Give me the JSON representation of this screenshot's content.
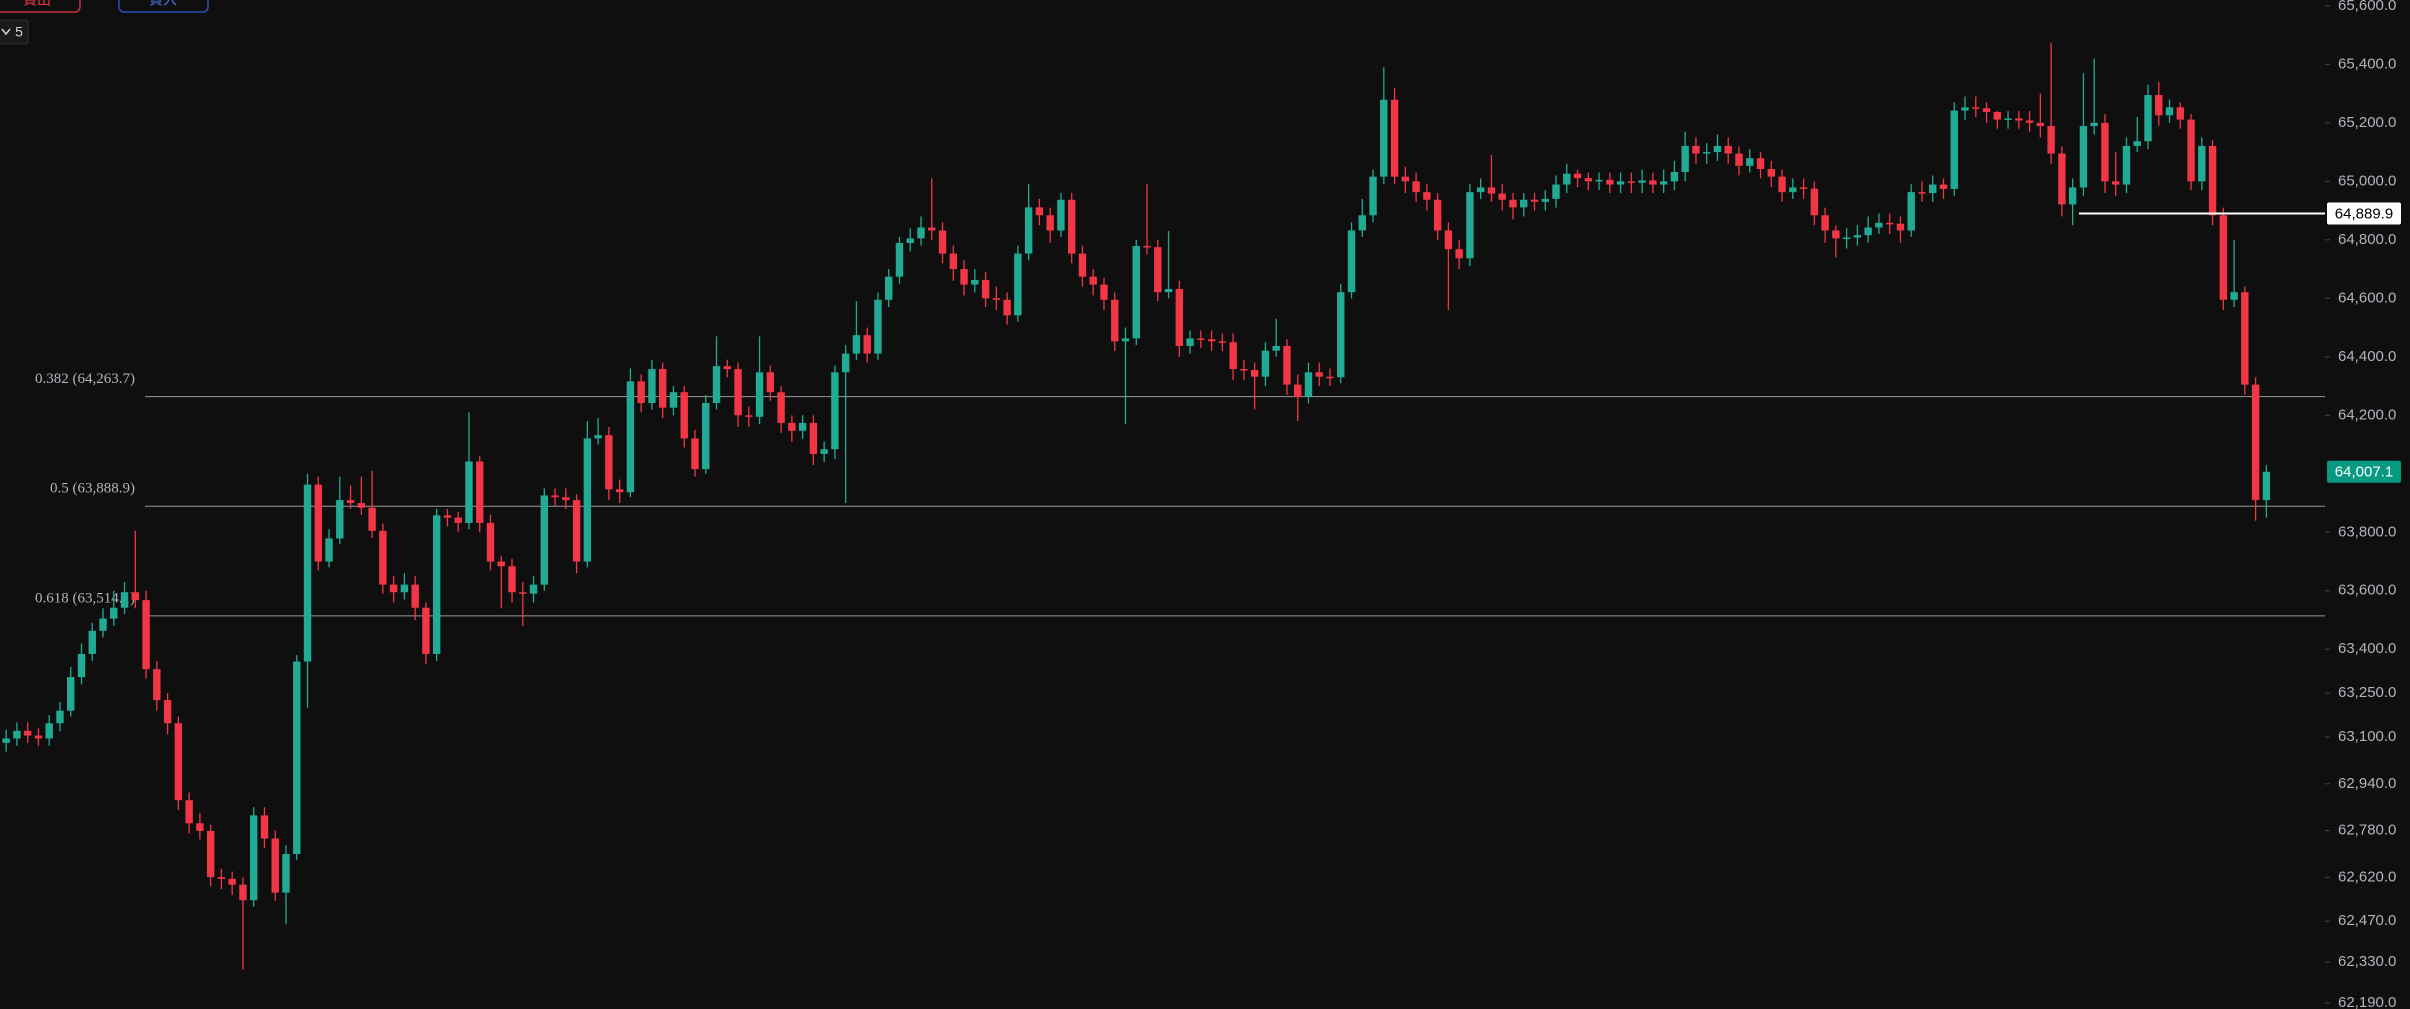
{
  "toolbar": {
    "sell": "賣出",
    "buy": "買入",
    "interval": "5"
  },
  "chart_data": {
    "type": "candlestick",
    "up_color": "#22ab94",
    "down_color": "#f23645",
    "ylim": [
      62170,
      65620
    ],
    "yticks": [
      {
        "value": 65600,
        "label": "65,600.0"
      },
      {
        "value": 65400,
        "label": "65,400.0"
      },
      {
        "value": 65200,
        "label": "65,200.0"
      },
      {
        "value": 65000,
        "label": "65,000.0"
      },
      {
        "value": 64800,
        "label": "64,800.0"
      },
      {
        "value": 64600,
        "label": "64,600.0"
      },
      {
        "value": 64400,
        "label": "64,400.0"
      },
      {
        "value": 64200,
        "label": "64,200.0"
      },
      {
        "value": 63800,
        "label": "63,800.0"
      },
      {
        "value": 63600,
        "label": "63,600.0"
      },
      {
        "value": 63400,
        "label": "63,400.0"
      },
      {
        "value": 63250,
        "label": "63,250.0"
      },
      {
        "value": 63100,
        "label": "63,100.0"
      },
      {
        "value": 62940,
        "label": "62,940.0"
      },
      {
        "value": 62780,
        "label": "62,780.0"
      },
      {
        "value": 62620,
        "label": "62,620.0"
      },
      {
        "value": 62470,
        "label": "62,470.0"
      },
      {
        "value": 62330,
        "label": "62,330.0"
      },
      {
        "value": 62190,
        "label": "62,190.0"
      }
    ],
    "fib_levels": [
      {
        "value": 64263.7,
        "label": "0.382 (64,263.7)"
      },
      {
        "value": 63888.9,
        "label": "0.5 (63,888.9)"
      },
      {
        "value": 63514.1,
        "label": "0.618 (63,514.1)"
      }
    ],
    "price_markers": [
      {
        "value": 64889.9,
        "label": "64,889.9",
        "color": "#ffffff"
      },
      {
        "value": 64007.1,
        "label": "64,007.1",
        "color": "#089981"
      }
    ],
    "open": [
      63080,
      63095,
      63121,
      63105,
      63095,
      63147,
      63190,
      63305,
      63384,
      63463,
      63505,
      63542,
      63595,
      63568,
      63332,
      63226,
      63147,
      62884,
      62805,
      62779,
      62621,
      62615,
      62595,
      62542,
      62832,
      62753,
      62568,
      62700,
      63358,
      63963,
      63700,
      63779,
      63910,
      63900,
      63884,
      63805,
      63621,
      63595,
      63621,
      63542,
      63384,
      63858,
      63850,
      63832,
      64042,
      63832,
      63700,
      63684,
      63595,
      63590,
      63621,
      63926,
      63920,
      63910,
      63700,
      64121,
      64132,
      63947,
      63937,
      64316,
      64242,
      64358,
      64226,
      64279,
      64121,
      64016,
      64242,
      64368,
      64358,
      64200,
      64195,
      64347,
      64279,
      64174,
      64147,
      64174,
      64068,
      64084,
      64347,
      64411,
      64474,
      64411,
      64595,
      64674,
      64789,
      64805,
      64842,
      64832,
      64753,
      64700,
      64647,
      64663,
      64600,
      64595,
      64542,
      64753,
      64911,
      64884,
      64832,
      64937,
      64753,
      64674,
      64647,
      64595,
      64453,
      64463,
      64779,
      64775,
      64621,
      64632,
      64437,
      64463,
      64460,
      64453,
      64450,
      64358,
      64355,
      64332,
      64421,
      64437,
      64305,
      64263,
      64347,
      64332,
      64330,
      64621,
      64832,
      64884,
      65016,
      65279,
      65016,
      65000,
      64963,
      64937,
      64832,
      64768,
      64737,
      64963,
      64979,
      64958,
      64937,
      64911,
      64937,
      64930,
      64940,
      64989,
      65026,
      65011,
      65000,
      65005,
      64989,
      65000,
      64995,
      65003,
      64989,
      65000,
      65032,
      65121,
      65095,
      65100,
      65121,
      65095,
      65053,
      65079,
      65042,
      65016,
      64963,
      64979,
      64975,
      64884,
      64832,
      64805,
      64808,
      64816,
      64842,
      64858,
      64855,
      64832,
      64963,
      64960,
      64989,
      64974,
      65242,
      65253,
      65250,
      65237,
      65211,
      65215,
      65208,
      65200,
      65189,
      65095,
      64921,
      64979,
      65189,
      65200,
      65000,
      64989,
      65121,
      65137,
      65295,
      65226,
      65253,
      65211,
      65000,
      65121,
      64884,
      64595,
      64621,
      64305,
      63910
    ],
    "high": [
      63125,
      63150,
      63150,
      63130,
      63175,
      63220,
      63340,
      63420,
      63490,
      63540,
      63600,
      63630,
      63805,
      63600,
      63360,
      63250,
      63170,
      62910,
      62840,
      62800,
      62650,
      62640,
      62620,
      62860,
      62860,
      62780,
      62730,
      63380,
      64000,
      63990,
      63810,
      63990,
      63960,
      63990,
      64010,
      63830,
      63650,
      63660,
      63650,
      63560,
      63880,
      63880,
      63870,
      64210,
      64060,
      63860,
      63720,
      63710,
      63630,
      63650,
      63950,
      63950,
      63950,
      63930,
      64180,
      64190,
      64160,
      63980,
      64360,
      64340,
      64390,
      64380,
      64300,
      64300,
      64150,
      64270,
      64470,
      64390,
      64380,
      64230,
      64470,
      64370,
      64300,
      64200,
      64200,
      64200,
      64110,
      64370,
      64440,
      64590,
      64500,
      64620,
      64700,
      64810,
      64840,
      64880,
      65010,
      64860,
      64780,
      64730,
      64700,
      64690,
      64640,
      64620,
      64780,
      64990,
      64940,
      64910,
      64960,
      64960,
      64780,
      64700,
      64670,
      64620,
      64500,
      64800,
      64990,
      64800,
      64830,
      64660,
      64490,
      64490,
      64490,
      64480,
      64480,
      64390,
      64380,
      64450,
      64530,
      64460,
      64340,
      64380,
      64380,
      64360,
      64650,
      64860,
      64940,
      65040,
      65390,
      65320,
      65050,
      65030,
      64990,
      64960,
      64860,
      64800,
      64990,
      65010,
      65090,
      64990,
      64960,
      64960,
      64960,
      64970,
      65020,
      65060,
      65040,
      65030,
      65030,
      65030,
      65030,
      65030,
      65040,
      65030,
      65040,
      65070,
      65170,
      65150,
      65130,
      65160,
      65150,
      65120,
      65110,
      65100,
      65070,
      65040,
      65010,
      65010,
      65000,
      64910,
      64850,
      64840,
      64850,
      64880,
      64890,
      64890,
      64880,
      64990,
      65000,
      65020,
      65010,
      65270,
      65290,
      65290,
      65270,
      65240,
      65240,
      65240,
      65240,
      65300,
      65474,
      65120,
      65010,
      65370,
      65420,
      65230,
      65100,
      65150,
      65220,
      65330,
      65340,
      65280,
      65270,
      65230,
      65150,
      65140,
      64910,
      64800,
      64640,
      64330,
      64030
    ],
    "low": [
      63050,
      63070,
      63080,
      63070,
      63070,
      63120,
      63170,
      63280,
      63360,
      63440,
      63480,
      63520,
      63540,
      63300,
      63190,
      63110,
      62850,
      62770,
      62750,
      62590,
      62580,
      62560,
      62305,
      62520,
      62720,
      62540,
      62460,
      62680,
      63200,
      63670,
      63680,
      63760,
      63880,
      63860,
      63780,
      63590,
      63560,
      63570,
      63500,
      63350,
      63360,
      63820,
      63800,
      63810,
      63800,
      63670,
      63540,
      63560,
      63480,
      63560,
      63600,
      63890,
      63880,
      63660,
      63680,
      64100,
      63910,
      63900,
      63920,
      64210,
      64220,
      64190,
      64200,
      64090,
      63990,
      64000,
      64220,
      64330,
      64160,
      64160,
      64170,
      64250,
      64140,
      64110,
      64120,
      64030,
      64040,
      64050,
      63900,
      64390,
      64380,
      64390,
      64570,
      64650,
      64760,
      64780,
      64800,
      64720,
      64660,
      64610,
      64620,
      64570,
      64560,
      64510,
      64520,
      64730,
      64850,
      64790,
      64810,
      64720,
      64640,
      64610,
      64560,
      64420,
      64170,
      64440,
      64750,
      64590,
      64600,
      64400,
      64410,
      64430,
      64420,
      64420,
      64320,
      64320,
      64220,
      64300,
      64400,
      64270,
      64180,
      64240,
      64300,
      64300,
      64310,
      64600,
      64810,
      64860,
      64990,
      64990,
      64960,
      64930,
      64900,
      64800,
      64560,
      64700,
      64710,
      64940,
      64930,
      64900,
      64870,
      64880,
      64900,
      64900,
      64910,
      64960,
      64980,
      64970,
      64970,
      64960,
      64960,
      64960,
      64960,
      64960,
      64960,
      64970,
      65000,
      65060,
      65060,
      65070,
      65060,
      65020,
      65030,
      65010,
      64980,
      64930,
      64940,
      64940,
      64850,
      64790,
      64740,
      64770,
      64780,
      64790,
      64820,
      64820,
      64790,
      64810,
      64930,
      64930,
      64940,
      64950,
      65210,
      65220,
      65200,
      65180,
      65180,
      65180,
      65170,
      65150,
      65060,
      64880,
      64850,
      64950,
      65160,
      64960,
      64950,
      64960,
      65100,
      65110,
      65190,
      65200,
      65180,
      64970,
      64970,
      64850,
      64560,
      64570,
      64270,
      63840,
      63850
    ],
    "close": [
      63095,
      63121,
      63105,
      63095,
      63147,
      63190,
      63305,
      63384,
      63463,
      63505,
      63542,
      63595,
      63568,
      63332,
      63226,
      63147,
      62884,
      62805,
      62779,
      62621,
      62615,
      62595,
      62542,
      62832,
      62753,
      62568,
      62700,
      63358,
      63963,
      63700,
      63779,
      63910,
      63900,
      63884,
      63805,
      63621,
      63595,
      63621,
      63542,
      63384,
      63858,
      63850,
      63832,
      64042,
      63832,
      63700,
      63684,
      63595,
      63590,
      63621,
      63926,
      63920,
      63910,
      63700,
      64121,
      64132,
      63947,
      63937,
      64316,
      64242,
      64358,
      64226,
      64279,
      64121,
      64016,
      64242,
      64368,
      64358,
      64200,
      64195,
      64347,
      64279,
      64174,
      64147,
      64174,
      64068,
      64084,
      64347,
      64411,
      64474,
      64411,
      64595,
      64674,
      64789,
      64805,
      64842,
      64832,
      64753,
      64700,
      64647,
      64663,
      64600,
      64595,
      64542,
      64753,
      64911,
      64884,
      64832,
      64937,
      64753,
      64674,
      64647,
      64595,
      64453,
      64463,
      64779,
      64775,
      64621,
      64632,
      64437,
      64463,
      64460,
      64453,
      64450,
      64358,
      64355,
      64332,
      64421,
      64437,
      64305,
      64263,
      64347,
      64332,
      64330,
      64621,
      64832,
      64884,
      65016,
      65279,
      65016,
      65000,
      64963,
      64937,
      64832,
      64768,
      64737,
      64963,
      64979,
      64958,
      64937,
      64911,
      64937,
      64930,
      64940,
      64989,
      65026,
      65011,
      65000,
      65005,
      64989,
      65000,
      64995,
      65003,
      64989,
      65000,
      65032,
      65121,
      65095,
      65100,
      65121,
      65095,
      65053,
      65079,
      65042,
      65016,
      64963,
      64979,
      64975,
      64884,
      64832,
      64805,
      64808,
      64816,
      64842,
      64858,
      64855,
      64832,
      64963,
      64960,
      64989,
      64974,
      65242,
      65253,
      65250,
      65237,
      65211,
      65215,
      65208,
      65200,
      65189,
      65095,
      64921,
      64979,
      65189,
      65200,
      65000,
      64989,
      65121,
      65137,
      65295,
      65226,
      65253,
      65211,
      65000,
      65121,
      64884,
      64595,
      64621,
      64305,
      63910,
      64007
    ]
  }
}
